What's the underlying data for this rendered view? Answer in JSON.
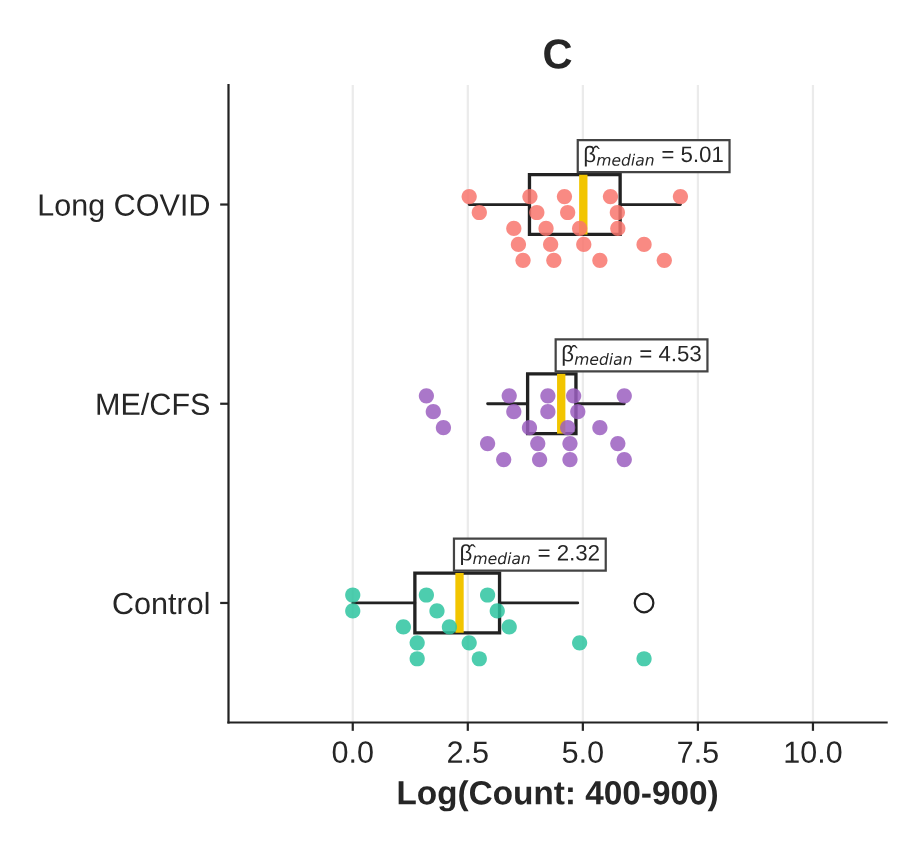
{
  "chart_data": {
    "type": "box",
    "orientation": "horizontal",
    "title": "C",
    "xlabel": "Log(Count: 400-900)",
    "categories": [
      "Long COVID",
      "ME/CFS",
      "Control"
    ],
    "xlim": [
      -2.7,
      11.6
    ],
    "xticks": [
      {
        "value": 0,
        "label": "0.0"
      },
      {
        "value": 2.5,
        "label": "2.5"
      },
      {
        "value": 5,
        "label": "5.0"
      },
      {
        "value": 7.5,
        "label": "7.5"
      },
      {
        "value": 10,
        "label": "10.0"
      }
    ],
    "grid": "x",
    "boxes": [
      {
        "low": 2.53,
        "q1": 3.84,
        "median": 5.01,
        "q3": 5.81,
        "high": 7.12
      },
      {
        "low": 2.93,
        "q1": 3.8,
        "median": 4.53,
        "q3": 4.85,
        "high": 5.9
      },
      {
        "low": 0.0,
        "q1": 1.35,
        "median": 2.32,
        "q3": 3.19,
        "high": 4.89,
        "outliers": [
          6.33
        ]
      }
    ],
    "series": [
      {
        "type": "scatter",
        "color": "#f8766d",
        "x": [
          "Long COVID",
          "Long COVID",
          "Long COVID",
          "Long COVID",
          "Long COVID",
          "Long COVID",
          "Long COVID",
          "Long COVID",
          "Long COVID",
          "Long COVID",
          "Long COVID",
          "Long COVID",
          "Long COVID",
          "Long COVID",
          "Long COVID",
          "Long COVID",
          "Long COVID",
          "Long COVID",
          "Long COVID",
          "Long COVID",
          "Long COVID"
        ],
        "values": [
          2.53,
          2.75,
          3.5,
          3.6,
          3.7,
          3.85,
          4.0,
          4.2,
          4.3,
          4.37,
          4.6,
          4.67,
          4.93,
          5.02,
          5.37,
          5.6,
          5.75,
          5.76,
          6.33,
          6.77,
          7.12
        ]
      },
      {
        "type": "scatter",
        "color": "#9b5fc0",
        "x": [
          "ME/CFS",
          "ME/CFS",
          "ME/CFS",
          "ME/CFS",
          "ME/CFS",
          "ME/CFS",
          "ME/CFS",
          "ME/CFS",
          "ME/CFS",
          "ME/CFS",
          "ME/CFS",
          "ME/CFS",
          "ME/CFS",
          "ME/CFS",
          "ME/CFS",
          "ME/CFS",
          "ME/CFS",
          "ME/CFS",
          "ME/CFS",
          "ME/CFS",
          "ME/CFS"
        ],
        "values": [
          1.6,
          1.75,
          1.97,
          2.93,
          3.28,
          3.4,
          3.5,
          3.84,
          4.02,
          4.06,
          4.24,
          4.24,
          4.67,
          4.72,
          4.72,
          4.8,
          4.89,
          5.37,
          5.76,
          5.9,
          5.9
        ]
      },
      {
        "type": "scatter",
        "color": "#2ec4a0",
        "x": [
          "Control",
          "Control",
          "Control",
          "Control",
          "Control",
          "Control",
          "Control",
          "Control",
          "Control",
          "Control",
          "Control",
          "Control",
          "Control",
          "Control",
          "Control"
        ],
        "values": [
          0.0,
          0.0,
          1.1,
          1.4,
          1.4,
          1.6,
          1.83,
          2.1,
          2.53,
          2.75,
          2.93,
          3.14,
          3.4,
          4.93,
          6.33
        ]
      }
    ],
    "annotations": [
      "β̂$_{median}$ = 5.01",
      "β̂$_{median}$ = 4.53",
      "β̂$_{median}$ = 2.32"
    ]
  }
}
